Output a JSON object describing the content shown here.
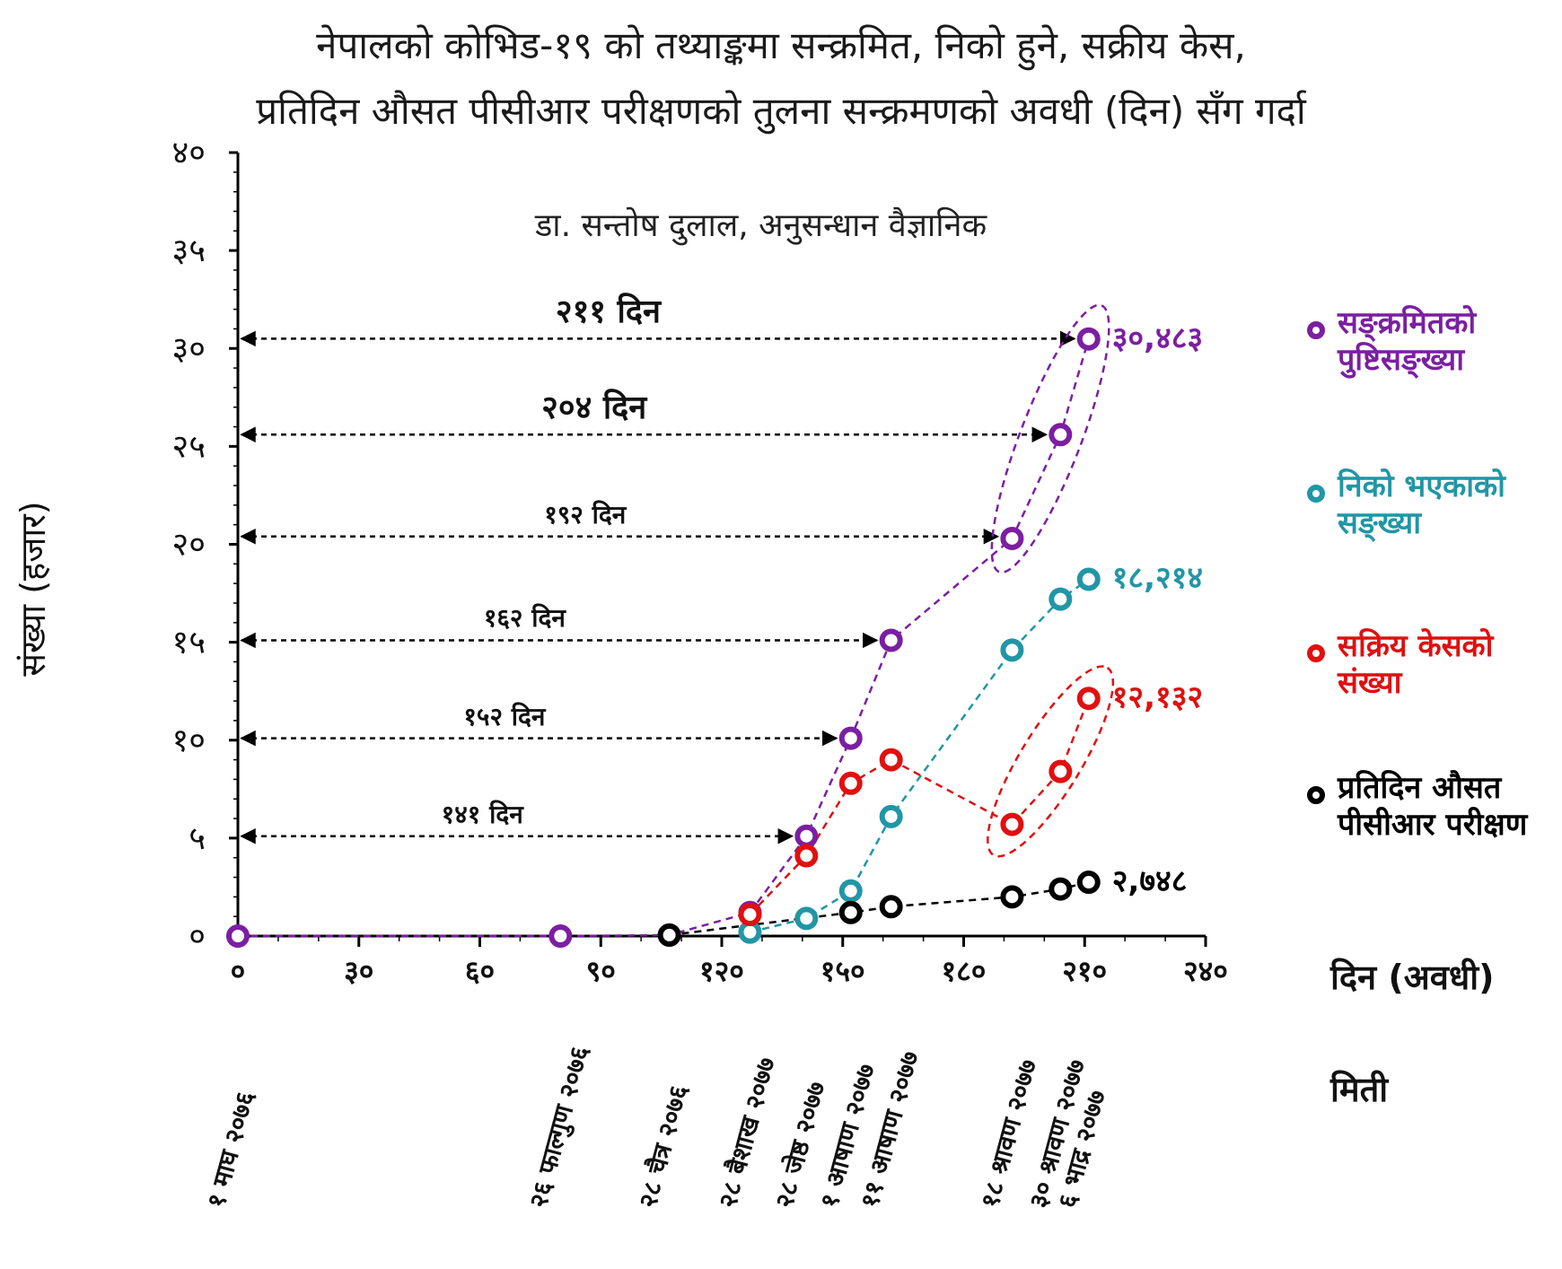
{
  "title_line1": "नेपालको कोभिड-१९ को तथ्याङ्कमा सन्क्रमित, निको हुने, सक्रीय केस,",
  "title_line2": "प्रतिदिन औसत पीसीआर परीक्षणको तुलना सन्क्रमणको अवधी  (दिन)  सँग गर्दा",
  "subtitle": "डा. सन्तोष दुलाल,  अनुसन्धान वैज्ञानिक",
  "ylabel": "संख्या (हजार)",
  "xlabel": "दिन (अवधी)",
  "date_label": "मिती",
  "y_tick_labels": [
    "०",
    "५",
    "१०",
    "१५",
    "२०",
    "२५",
    "३०",
    "३५",
    "४०"
  ],
  "x_tick_labels": [
    "०",
    "३०",
    "६०",
    "९०",
    "१२०",
    "१५०",
    "१८०",
    "२१०",
    "२४०"
  ],
  "dates": [
    {
      "day": 0,
      "label": "१ माघ २०७६"
    },
    {
      "day": 80,
      "label": "२६ फाल्गुण २०७६"
    },
    {
      "day": 107,
      "label": "२८ चैत्र २०७६"
    },
    {
      "day": 127,
      "label": "२८ बैशाख २०७७"
    },
    {
      "day": 141,
      "label": "२८ जेष्ठ २०७७"
    },
    {
      "day": 152,
      "label": "१ आषाण २०७७"
    },
    {
      "day": 162,
      "label": "११ आषाण २०७७"
    },
    {
      "day": 192,
      "label": "१८ श्रावण २०७७"
    },
    {
      "day": 204,
      "label": "३० श्रावण २०७७"
    },
    {
      "day": 211,
      "label": "६ भाद्र २०७७"
    }
  ],
  "intervals": [
    {
      "label": "२११  दिन",
      "y": 30.5,
      "day": 211,
      "size": "big"
    },
    {
      "label": "२०४  दिन",
      "y": 25.6,
      "day": 204,
      "size": "big"
    },
    {
      "label": "१९२  दिन",
      "y": 20.4,
      "day": 192,
      "size": "small"
    },
    {
      "label": "१६२  दिन",
      "y": 15.1,
      "day": 162,
      "size": "small"
    },
    {
      "label": "१५२ दिन",
      "y": 10.1,
      "day": 152,
      "size": "small"
    },
    {
      "label": "१४१ दिन",
      "y": 5.1,
      "day": 141,
      "size": "small"
    }
  ],
  "end_labels": [
    {
      "text": "३०,४८३",
      "series": 0
    },
    {
      "text": "१८,२१४",
      "series": 1
    },
    {
      "text": "१२,१३२",
      "series": 2
    },
    {
      "text": "२,७४८",
      "series": 3
    }
  ],
  "colors": {
    "purple": "#7b1fa2",
    "teal": "#2196a6",
    "red": "#e01010",
    "black": "#000000"
  },
  "chart_data": {
    "type": "scatter",
    "x_unit": "days",
    "y_unit": "thousands",
    "xlim": [
      0,
      240
    ],
    "ylim": [
      0,
      40
    ],
    "x_ticks": [
      0,
      30,
      60,
      90,
      120,
      150,
      180,
      210,
      240
    ],
    "y_ticks": [
      0,
      5,
      10,
      15,
      20,
      25,
      30,
      35,
      40
    ],
    "series": [
      {
        "name": "सङ्क्रमितको पुष्टिसङ्ख्या",
        "color": "#7b1fa2",
        "x": [
          0,
          80,
          107,
          127,
          141,
          152,
          162,
          192,
          204,
          211
        ],
        "y": [
          0,
          0,
          0.05,
          1.2,
          5.1,
          10.1,
          15.1,
          20.3,
          25.6,
          30.483
        ]
      },
      {
        "name": "निको भएकाको सङ्ख्या",
        "color": "#2196a6",
        "x": [
          127,
          141,
          152,
          162,
          192,
          204,
          211
        ],
        "y": [
          0.2,
          0.9,
          2.3,
          6.1,
          14.6,
          17.2,
          18.214
        ]
      },
      {
        "name": "सक्रिय केसको संख्या",
        "color": "#e01010",
        "x": [
          127,
          141,
          152,
          162,
          192,
          204,
          211
        ],
        "y": [
          1.1,
          4.1,
          7.8,
          9.0,
          5.7,
          8.4,
          12.132
        ]
      },
      {
        "name": "प्रतिदिन औसत पीसीआर परीक्षण",
        "color": "#000000",
        "x": [
          107,
          152,
          162,
          192,
          204,
          211
        ],
        "y": [
          0.05,
          1.2,
          1.5,
          2.0,
          2.4,
          2.748
        ]
      }
    ]
  }
}
